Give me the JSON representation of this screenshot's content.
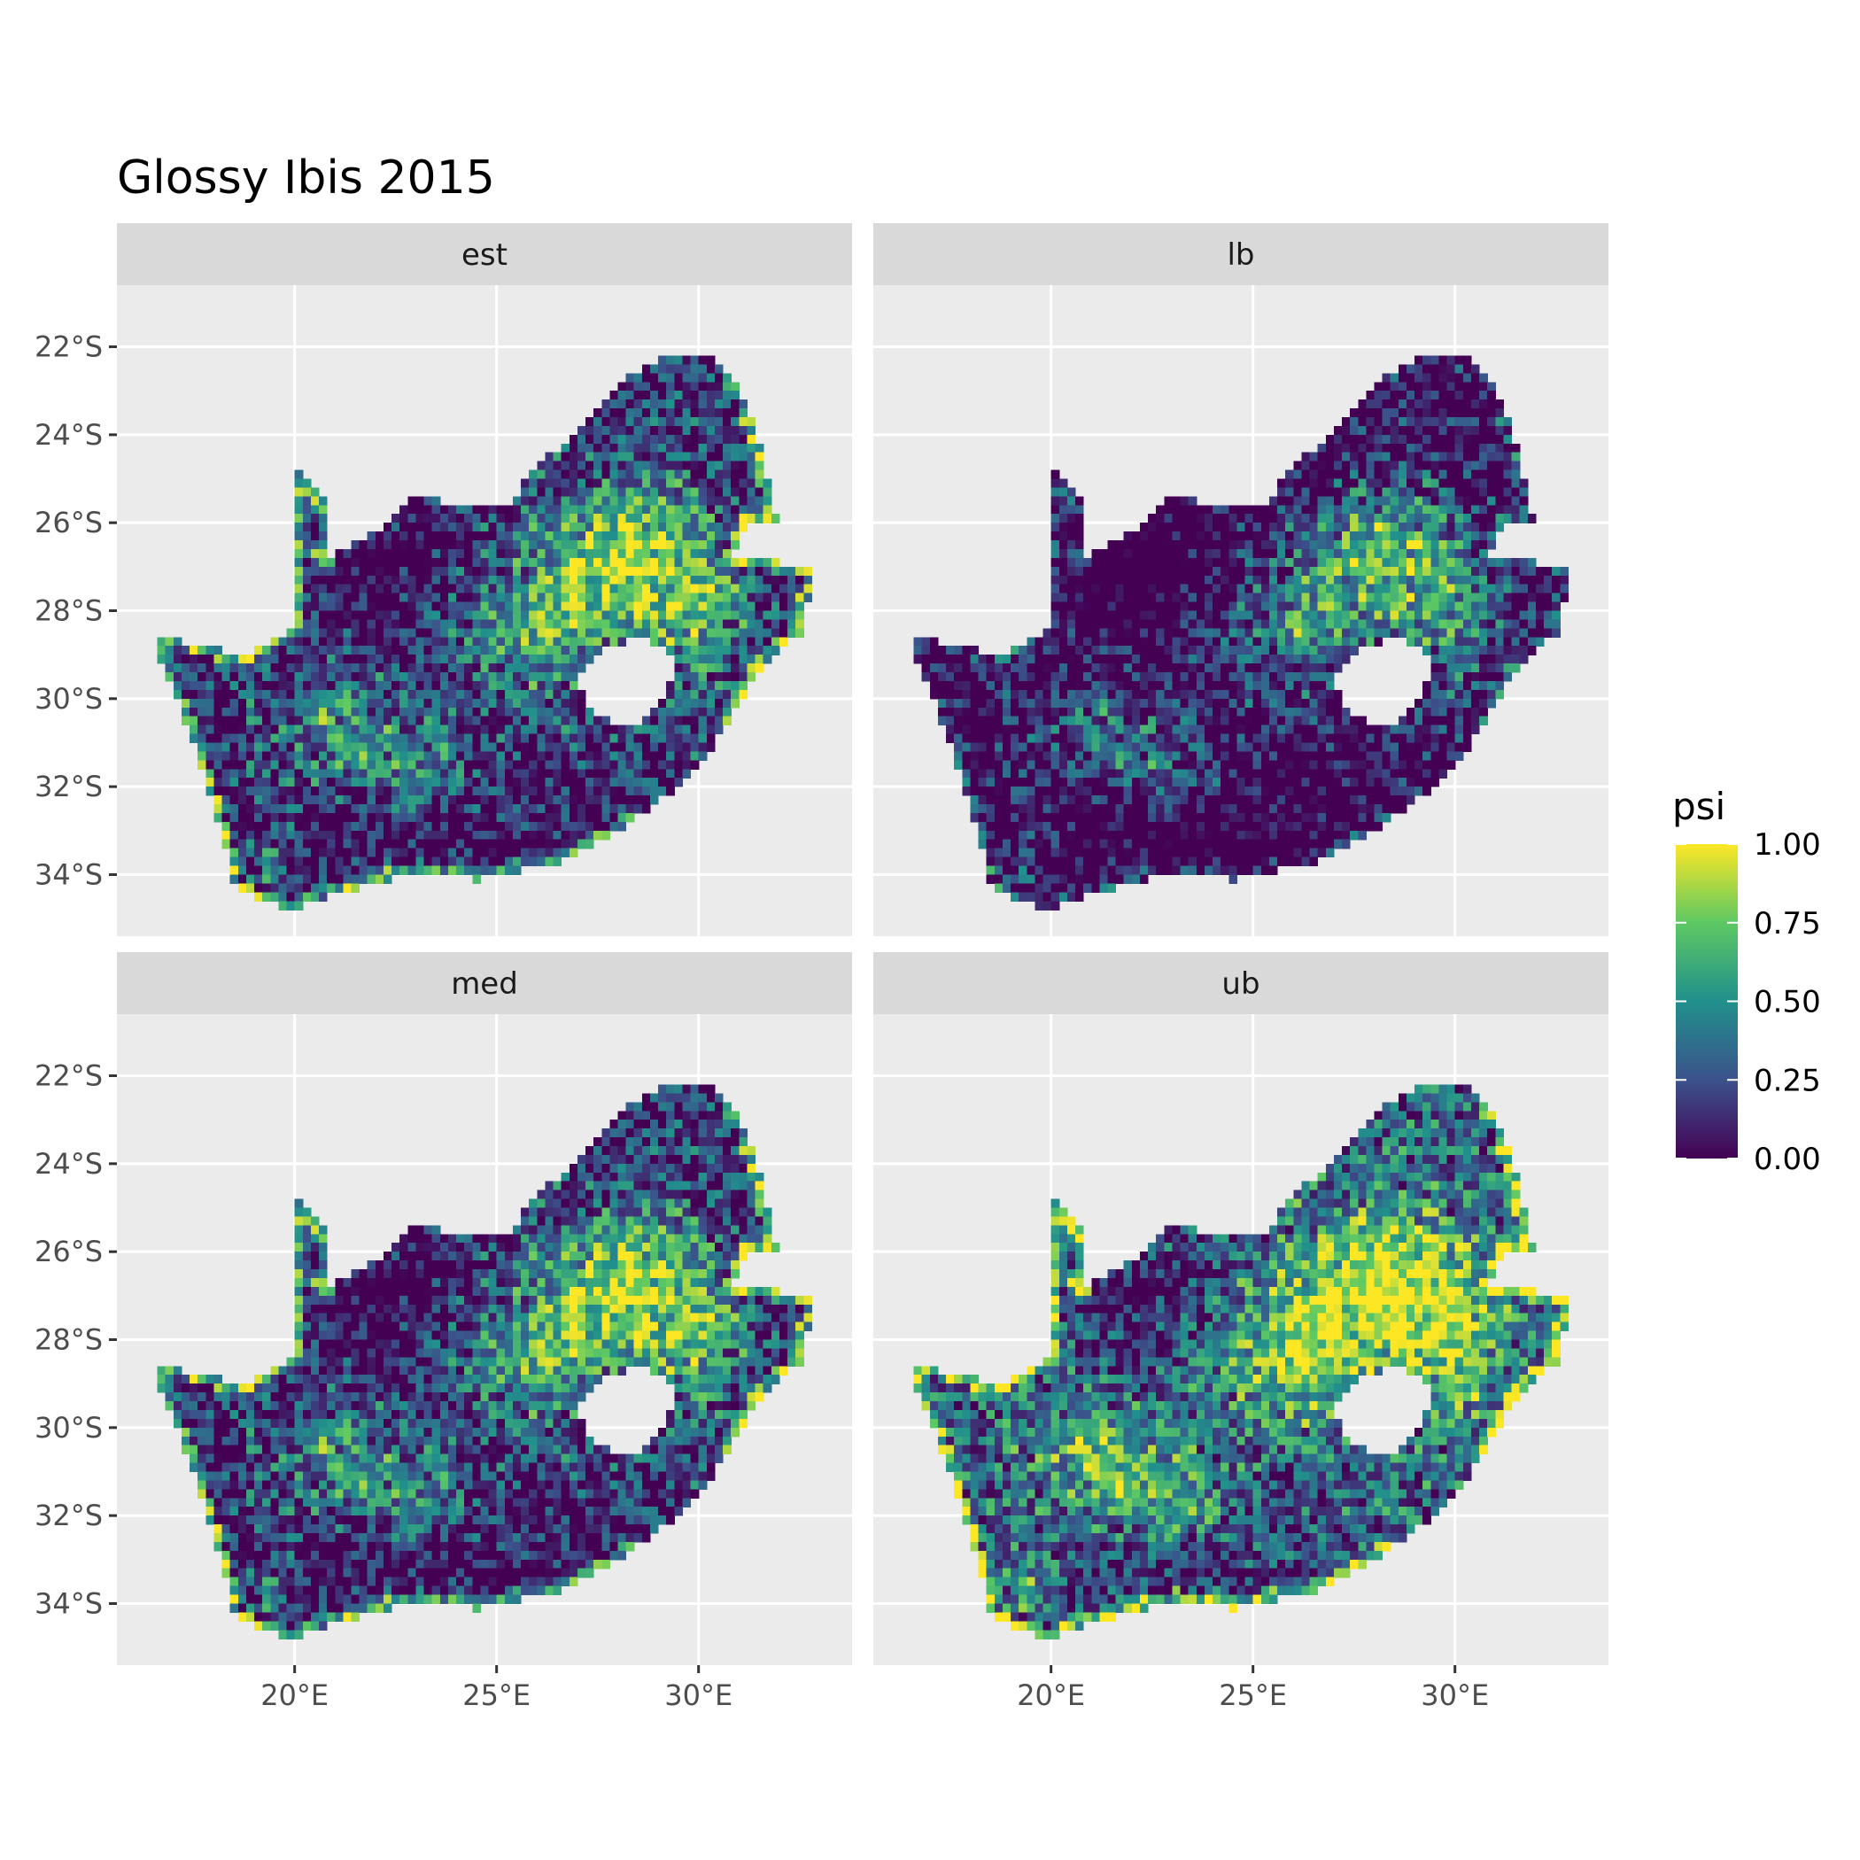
{
  "title": "Glossy Ibis 2015",
  "colors": {
    "panel_background": "#ebebeb",
    "grid_major": "#ffffff",
    "strip_background": "#d9d9d9",
    "ocean_missing": "none",
    "viridis": [
      "#440154",
      "#3b528b",
      "#21908c",
      "#5dc863",
      "#fde725"
    ]
  },
  "chart_data": {
    "type": "heatmap",
    "description_type": "faceted raster map",
    "facets": [
      "est",
      "lb",
      "med",
      "ub"
    ],
    "x_ticks": [
      "20°E",
      "25°E",
      "30°E"
    ],
    "x_tick_values": [
      20,
      25,
      30
    ],
    "y_ticks": [
      "22°S",
      "24°S",
      "26°S",
      "28°S",
      "30°S",
      "32°S",
      "34°S"
    ],
    "y_tick_values": [
      -22,
      -24,
      -26,
      -28,
      -30,
      -32,
      -34
    ],
    "xlim": [
      15.6,
      33.8
    ],
    "ylim": [
      -35.4,
      -20.6
    ],
    "legend": {
      "title": "psi",
      "position": "right",
      "labels": [
        "1.00",
        "0.75",
        "0.50",
        "0.25",
        "0.00"
      ],
      "values": [
        1.0,
        0.75,
        0.5,
        0.25,
        0.0
      ],
      "range": [
        0,
        1
      ]
    },
    "grid": true
  }
}
